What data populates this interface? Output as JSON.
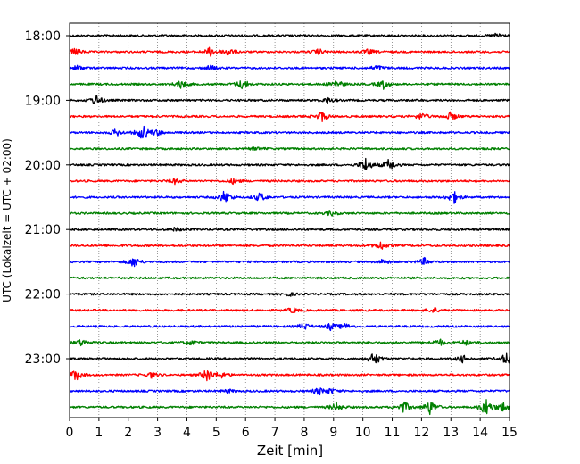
{
  "chart_data": {
    "type": "line",
    "chart_kind": "helicorder",
    "xlabel": "Zeit  [min]",
    "ylabel": "UTC (Lokalzeit = UTC + 02:00)",
    "xlim": [
      0,
      15
    ],
    "x_ticks": [
      "0",
      "1",
      "2",
      "3",
      "4",
      "5",
      "6",
      "7",
      "8",
      "9",
      "10",
      "11",
      "12",
      "13",
      "14",
      "15"
    ],
    "y_tick_labels": [
      "18:00",
      "19:00",
      "20:00",
      "21:00",
      "22:00",
      "23:00"
    ],
    "grid": {
      "vertical": true,
      "style": "dotted"
    },
    "colors": [
      "#000000",
      "#ff0000",
      "#0000ff",
      "#008000"
    ],
    "trace_minutes": 15,
    "traces": [
      {
        "start": "18:00",
        "events": [
          [
            14.6,
            3
          ]
        ]
      },
      {
        "start": "18:15",
        "events": [
          [
            0.2,
            4
          ],
          [
            4.8,
            5
          ],
          [
            5.4,
            5
          ],
          [
            8.5,
            3
          ],
          [
            10.2,
            3
          ]
        ]
      },
      {
        "start": "18:30",
        "events": [
          [
            0.3,
            3
          ],
          [
            4.8,
            3
          ],
          [
            10.5,
            3
          ]
        ]
      },
      {
        "start": "18:45",
        "events": [
          [
            3.8,
            5
          ],
          [
            5.9,
            6
          ],
          [
            9.1,
            5
          ],
          [
            10.7,
            5
          ]
        ]
      },
      {
        "start": "19:00",
        "events": [
          [
            0.9,
            6
          ],
          [
            8.8,
            3
          ]
        ]
      },
      {
        "start": "19:15",
        "events": [
          [
            8.6,
            6
          ],
          [
            12.0,
            4
          ],
          [
            13.0,
            5
          ]
        ]
      },
      {
        "start": "19:30",
        "events": [
          [
            1.6,
            4
          ],
          [
            2.5,
            9
          ],
          [
            3.0,
            3
          ]
        ]
      },
      {
        "start": "19:45",
        "events": [
          [
            6.4,
            2
          ]
        ]
      },
      {
        "start": "20:00",
        "events": [
          [
            10.1,
            8
          ],
          [
            10.9,
            7
          ]
        ]
      },
      {
        "start": "20:15",
        "events": [
          [
            3.6,
            3
          ],
          [
            5.6,
            3
          ]
        ]
      },
      {
        "start": "20:30",
        "events": [
          [
            5.3,
            8
          ],
          [
            6.5,
            5
          ],
          [
            13.1,
            7
          ]
        ]
      },
      {
        "start": "20:45",
        "events": [
          [
            8.9,
            3
          ]
        ]
      },
      {
        "start": "21:00",
        "events": [
          [
            3.6,
            2
          ]
        ]
      },
      {
        "start": "21:15",
        "events": [
          [
            10.6,
            5
          ]
        ]
      },
      {
        "start": "21:30",
        "events": [
          [
            2.2,
            6
          ],
          [
            10.7,
            3
          ],
          [
            12.1,
            4
          ]
        ]
      },
      {
        "start": "21:45",
        "events": []
      },
      {
        "start": "22:00",
        "events": [
          [
            7.5,
            2
          ]
        ]
      },
      {
        "start": "22:15",
        "events": [
          [
            7.6,
            3
          ],
          [
            12.4,
            3
          ]
        ]
      },
      {
        "start": "22:30",
        "events": [
          [
            8.0,
            4
          ],
          [
            8.9,
            4
          ],
          [
            9.4,
            3
          ]
        ]
      },
      {
        "start": "22:45",
        "events": [
          [
            0.4,
            4
          ],
          [
            4.1,
            3
          ],
          [
            12.6,
            4
          ],
          [
            13.5,
            3
          ]
        ]
      },
      {
        "start": "23:00",
        "events": [
          [
            10.4,
            8
          ],
          [
            13.4,
            4
          ],
          [
            14.9,
            7
          ]
        ]
      },
      {
        "start": "23:15",
        "events": [
          [
            0.2,
            7
          ],
          [
            2.8,
            4
          ],
          [
            4.7,
            8
          ],
          [
            5.2,
            3
          ]
        ]
      },
      {
        "start": "23:30",
        "events": [
          [
            5.4,
            2
          ],
          [
            8.5,
            4
          ],
          [
            8.9,
            3
          ]
        ]
      },
      {
        "start": "23:45",
        "events": [
          [
            9.1,
            5
          ],
          [
            11.4,
            7
          ],
          [
            12.3,
            9
          ],
          [
            14.2,
            10
          ],
          [
            14.8,
            6
          ]
        ]
      }
    ]
  }
}
